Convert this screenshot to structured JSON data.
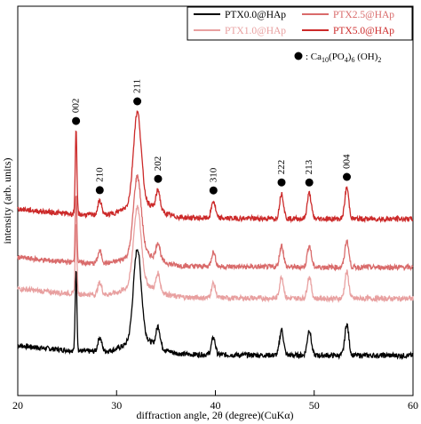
{
  "chart_data": {
    "type": "line",
    "title": "",
    "xlabel": "diffraction angle, 2θ (degree)(CuKα)",
    "ylabel": "intensity (arb. units)",
    "xlim": [
      20,
      60
    ],
    "xticks": [
      20,
      30,
      40,
      50,
      60
    ],
    "y_ticks_shown": false,
    "grid": false,
    "legend_position": "top-right",
    "series": [
      {
        "name": "PTX0.0@HAp",
        "color": "#000000",
        "baseline": 0.0
      },
      {
        "name": "PTX1.0@HAp",
        "color": "#e8a0a0",
        "baseline": 1.0
      },
      {
        "name": "PTX2.5@HAp",
        "color": "#d96b6b",
        "baseline": 1.55
      },
      {
        "name": "PTX5.0@HAp",
        "color": "#cc2a2a",
        "baseline": 2.4
      }
    ],
    "peaks": [
      {
        "hkl": "002",
        "x": 25.9,
        "height": 1.45
      },
      {
        "hkl": "210",
        "x": 28.3,
        "height": 0.25
      },
      {
        "hkl": "211",
        "x": 32.1,
        "height": 1.6
      },
      {
        "hkl": "202",
        "x": 34.2,
        "height": 0.35
      },
      {
        "hkl": "310",
        "x": 39.8,
        "height": 0.3
      },
      {
        "hkl": "222",
        "x": 46.7,
        "height": 0.45
      },
      {
        "hkl": "213",
        "x": 49.5,
        "height": 0.45
      },
      {
        "hkl": "004",
        "x": 53.3,
        "height": 0.55
      }
    ],
    "marker_legend": "● : Ca₁₀(PO₄)₆ (OH)₂"
  }
}
